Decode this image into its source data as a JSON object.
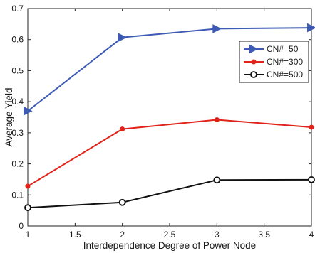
{
  "chart_data": {
    "type": "line",
    "xlabel": "Interdependence Degree of Power Node",
    "ylabel": "Average Yield",
    "xlim": [
      1,
      4
    ],
    "ylim": [
      0,
      0.7
    ],
    "x_ticks": [
      "1",
      "1.5",
      "2",
      "2.5",
      "3",
      "3.5",
      "4"
    ],
    "y_ticks": [
      "0",
      "0.1",
      "0.2",
      "0.3",
      "0.4",
      "0.5",
      "0.6",
      "0.7"
    ],
    "grid": false,
    "legend_position": "top-right",
    "x": [
      1,
      2,
      3,
      4
    ],
    "series": [
      {
        "name": "CN#=50",
        "values": [
          0.37,
          0.607,
          0.635,
          0.638
        ],
        "color": "#3d5bb5",
        "marker": "triangle-right"
      },
      {
        "name": "CN#=300",
        "values": [
          0.128,
          0.312,
          0.342,
          0.318
        ],
        "color": "#e2231a",
        "marker": "dot"
      },
      {
        "name": "CN#=500",
        "values": [
          0.059,
          0.076,
          0.148,
          0.149
        ],
        "color": "#111111",
        "marker": "circle-open"
      }
    ]
  }
}
